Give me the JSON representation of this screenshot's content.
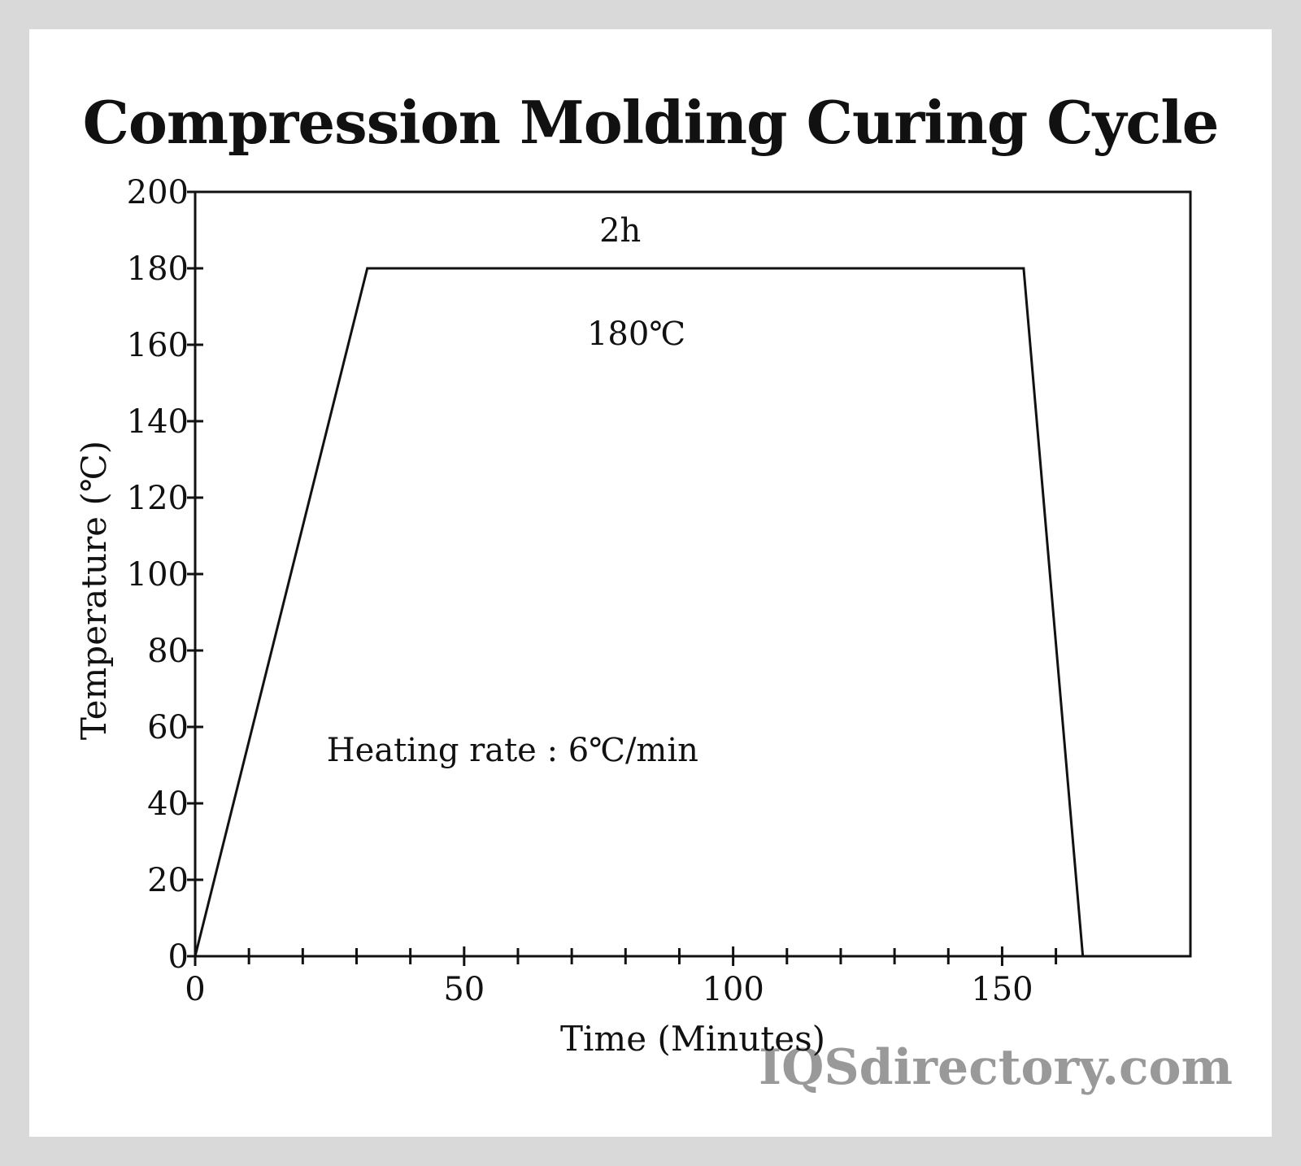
{
  "title": "Compression Molding Curing Cycle",
  "watermark": "IQSdirectory.com",
  "colors": {
    "background": "#d9d9d9",
    "card": "#ffffff",
    "ink": "#111111",
    "watermark": "#999999"
  },
  "chart_data": {
    "type": "line",
    "title": "Compression Molding Curing Cycle",
    "xlabel": "Time (Minutes)",
    "ylabel": "Temperature (℃)",
    "xlim": [
      0,
      185
    ],
    "ylim": [
      0,
      200
    ],
    "x_ticks_labeled": [
      0,
      50,
      100,
      150
    ],
    "x_ticks_labels": [
      "0",
      "50",
      "100",
      "150"
    ],
    "x_minor_ticks": [
      10,
      20,
      30,
      40,
      60,
      70,
      80,
      90,
      110,
      120,
      130,
      140,
      160
    ],
    "y_ticks": [
      0,
      20,
      40,
      60,
      80,
      100,
      120,
      140,
      160,
      180,
      200
    ],
    "y_ticks_labels": [
      "0",
      "20",
      "40",
      "60",
      "80",
      "100",
      "120",
      "140",
      "160",
      "180",
      "200"
    ],
    "grid": false,
    "series": [
      {
        "x": [
          0,
          32,
          154,
          165
        ],
        "y": [
          0,
          180,
          180,
          0
        ]
      }
    ],
    "annotations": [
      {
        "text": "2h",
        "x": 79,
        "y": 190
      },
      {
        "text": "180℃",
        "x": 82,
        "y": 163
      },
      {
        "text": "Heating rate : 6℃/min",
        "x": 59,
        "y": 54
      }
    ]
  }
}
